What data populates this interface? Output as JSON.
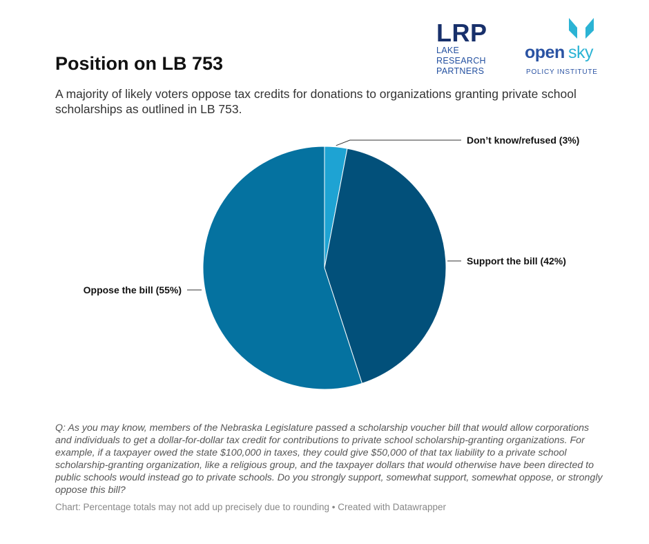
{
  "title": "Position on LB 753",
  "subtitle": "A majority of likely voters oppose tax credits for donations to organizations granting private school scholarships as outlined in LB 753.",
  "logos": {
    "lrp": {
      "mark": "LRP",
      "line1": "LAKE",
      "line2": "RESEARCH",
      "line3": "PARTNERS"
    },
    "opensky": {
      "word1": "open",
      "word2": "sky",
      "sub": "POLICY INSTITUTE"
    }
  },
  "chart_data": {
    "type": "pie",
    "start_angle_deg": 0,
    "direction": "clockwise",
    "slices": [
      {
        "label": "Don’t know/refused (3%)",
        "value": 3,
        "color": "#1ea3d3",
        "label_side": "right"
      },
      {
        "label": "Support the bill (42%)",
        "value": 42,
        "color": "#02507a",
        "label_side": "right"
      },
      {
        "label": "Oppose the bill (55%)",
        "value": 55,
        "color": "#0572a0",
        "label_side": "left"
      }
    ]
  },
  "note": "Q: As you may know, members of the Nebraska Legislature passed a scholarship voucher bill that would allow corporations and individuals to get a dollar-for-dollar tax credit for contributions to private school scholarship-granting organizations. For example, if a taxpayer owed the state $100,000 in taxes, they could give $50,000 of that tax liability to a private school scholarship-granting organization, like a religious group, and the taxpayer dollars that would otherwise have been directed to public schools would instead go to private schools. Do you strongly support, somewhat support, somewhat oppose, or strongly oppose this bill?",
  "footer": "Chart: Percentage totals may not add up precisely due to rounding • Created with Datawrapper"
}
